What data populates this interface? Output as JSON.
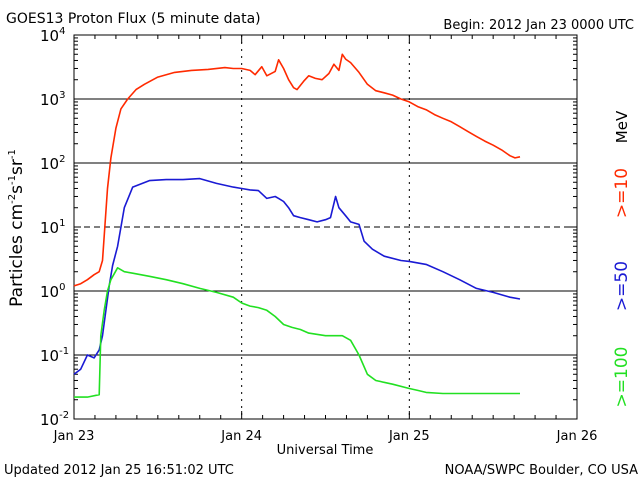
{
  "header": {
    "title": "GOES13 Proton Flux (5 minute data)",
    "begin": "Begin: 2012 Jan 23 0000 UTC"
  },
  "footer": {
    "updated": "Updated 2012 Jan 25 16:51:02 UTC",
    "credit": "NOAA/SWPC Boulder, CO USA"
  },
  "colors": {
    "ge10": "#ff2a00",
    "ge50": "#1a1ad4",
    "ge100": "#22e022",
    "grid": "#000000"
  },
  "chart_data": {
    "type": "line",
    "title": "GOES13 Proton Flux (5 minute data)",
    "xlabel": "Universal Time",
    "ylabel_parts": {
      "base": "Particles cm",
      "e1": "-2",
      "mid1": "s",
      "e2": "-1",
      "mid2": "sr",
      "e3": "-1"
    },
    "y_scale": "log",
    "ylim": [
      0.01,
      10000
    ],
    "xlim": [
      0,
      3
    ],
    "x_ticks": [
      {
        "pos": 0,
        "label": "Jan 23"
      },
      {
        "pos": 1,
        "label": "Jan 24"
      },
      {
        "pos": 2,
        "label": "Jan 25"
      },
      {
        "pos": 3,
        "label": "Jan 26"
      }
    ],
    "y_ticks": [
      {
        "value": 0.01,
        "base": "10",
        "exp": "-2"
      },
      {
        "value": 0.1,
        "base": "10",
        "exp": "-1"
      },
      {
        "value": 1,
        "base": "10",
        "exp": "0"
      },
      {
        "value": 10,
        "base": "10",
        "exp": "1"
      },
      {
        "value": 100,
        "base": "10",
        "exp": "2"
      },
      {
        "value": 1000,
        "base": "10",
        "exp": "3"
      },
      {
        "value": 10000,
        "base": "10",
        "exp": "4"
      }
    ],
    "solid_gridlines": [
      0.1,
      1,
      100,
      1000
    ],
    "dashed_gridlines": [
      10
    ],
    "unit_label": "MeV",
    "series": [
      {
        "name": ">=10",
        "color": "#ff2a00",
        "points": [
          [
            0,
            1.2
          ],
          [
            0.04,
            1.3
          ],
          [
            0.08,
            1.5
          ],
          [
            0.12,
            1.8
          ],
          [
            0.15,
            2
          ],
          [
            0.17,
            3
          ],
          [
            0.2,
            40
          ],
          [
            0.22,
            120
          ],
          [
            0.25,
            350
          ],
          [
            0.28,
            700
          ],
          [
            0.32,
            1000
          ],
          [
            0.37,
            1400
          ],
          [
            0.42,
            1700
          ],
          [
            0.5,
            2200
          ],
          [
            0.6,
            2600
          ],
          [
            0.7,
            2800
          ],
          [
            0.8,
            2900
          ],
          [
            0.9,
            3100
          ],
          [
            0.95,
            3000
          ],
          [
            1.0,
            3000
          ],
          [
            1.05,
            2800
          ],
          [
            1.08,
            2400
          ],
          [
            1.12,
            3200
          ],
          [
            1.15,
            2300
          ],
          [
            1.2,
            2700
          ],
          [
            1.22,
            4100
          ],
          [
            1.25,
            3000
          ],
          [
            1.28,
            2000
          ],
          [
            1.31,
            1500
          ],
          [
            1.33,
            1400
          ],
          [
            1.37,
            1900
          ],
          [
            1.4,
            2300
          ],
          [
            1.44,
            2100
          ],
          [
            1.48,
            2000
          ],
          [
            1.52,
            2500
          ],
          [
            1.55,
            3500
          ],
          [
            1.58,
            2800
          ],
          [
            1.6,
            5000
          ],
          [
            1.62,
            4200
          ],
          [
            1.65,
            3700
          ],
          [
            1.7,
            2600
          ],
          [
            1.75,
            1700
          ],
          [
            1.8,
            1350
          ],
          [
            1.85,
            1250
          ],
          [
            1.9,
            1150
          ],
          [
            1.95,
            1000
          ],
          [
            2.0,
            900
          ],
          [
            2.05,
            760
          ],
          [
            2.1,
            680
          ],
          [
            2.15,
            570
          ],
          [
            2.2,
            500
          ],
          [
            2.25,
            440
          ],
          [
            2.3,
            370
          ],
          [
            2.35,
            310
          ],
          [
            2.4,
            260
          ],
          [
            2.45,
            220
          ],
          [
            2.5,
            190
          ],
          [
            2.55,
            160
          ],
          [
            2.6,
            130
          ],
          [
            2.63,
            120
          ],
          [
            2.66,
            125
          ]
        ]
      },
      {
        "name": ">=50",
        "color": "#1a1ad4",
        "points": [
          [
            0,
            0.05
          ],
          [
            0.04,
            0.06
          ],
          [
            0.08,
            0.1
          ],
          [
            0.12,
            0.09
          ],
          [
            0.15,
            0.12
          ],
          [
            0.17,
            0.2
          ],
          [
            0.19,
            0.5
          ],
          [
            0.21,
            1.2
          ],
          [
            0.23,
            2.5
          ],
          [
            0.26,
            5
          ],
          [
            0.3,
            20
          ],
          [
            0.35,
            42
          ],
          [
            0.45,
            53
          ],
          [
            0.55,
            55
          ],
          [
            0.65,
            55
          ],
          [
            0.75,
            57
          ],
          [
            0.85,
            48
          ],
          [
            0.95,
            42
          ],
          [
            1.0,
            40
          ],
          [
            1.05,
            38
          ],
          [
            1.1,
            37
          ],
          [
            1.15,
            28
          ],
          [
            1.2,
            30
          ],
          [
            1.22,
            28
          ],
          [
            1.25,
            25
          ],
          [
            1.28,
            20
          ],
          [
            1.31,
            15
          ],
          [
            1.35,
            14
          ],
          [
            1.4,
            13
          ],
          [
            1.45,
            12
          ],
          [
            1.5,
            13
          ],
          [
            1.53,
            14
          ],
          [
            1.56,
            30
          ],
          [
            1.58,
            20
          ],
          [
            1.62,
            15
          ],
          [
            1.65,
            12
          ],
          [
            1.7,
            11
          ],
          [
            1.73,
            6
          ],
          [
            1.78,
            4.5
          ],
          [
            1.85,
            3.5
          ],
          [
            1.95,
            3
          ],
          [
            2.0,
            2.9
          ],
          [
            2.1,
            2.6
          ],
          [
            2.2,
            2
          ],
          [
            2.3,
            1.5
          ],
          [
            2.4,
            1.1
          ],
          [
            2.5,
            0.95
          ],
          [
            2.6,
            0.8
          ],
          [
            2.66,
            0.75
          ]
        ]
      },
      {
        "name": ">=100",
        "color": "#22e022",
        "points": [
          [
            0,
            0.022
          ],
          [
            0.08,
            0.022
          ],
          [
            0.15,
            0.024
          ],
          [
            0.16,
            0.2
          ],
          [
            0.18,
            0.5
          ],
          [
            0.2,
            1.0
          ],
          [
            0.22,
            1.5
          ],
          [
            0.26,
            2.3
          ],
          [
            0.3,
            2.0
          ],
          [
            0.35,
            1.9
          ],
          [
            0.45,
            1.7
          ],
          [
            0.55,
            1.5
          ],
          [
            0.65,
            1.3
          ],
          [
            0.75,
            1.1
          ],
          [
            0.85,
            0.95
          ],
          [
            0.95,
            0.8
          ],
          [
            1.0,
            0.65
          ],
          [
            1.05,
            0.58
          ],
          [
            1.1,
            0.55
          ],
          [
            1.15,
            0.5
          ],
          [
            1.2,
            0.4
          ],
          [
            1.25,
            0.3
          ],
          [
            1.3,
            0.27
          ],
          [
            1.35,
            0.25
          ],
          [
            1.4,
            0.22
          ],
          [
            1.5,
            0.2
          ],
          [
            1.6,
            0.2
          ],
          [
            1.65,
            0.17
          ],
          [
            1.7,
            0.1
          ],
          [
            1.75,
            0.05
          ],
          [
            1.8,
            0.04
          ],
          [
            1.9,
            0.035
          ],
          [
            2.0,
            0.03
          ],
          [
            2.05,
            0.028
          ],
          [
            2.1,
            0.026
          ],
          [
            2.2,
            0.025
          ],
          [
            2.4,
            0.025
          ],
          [
            2.6,
            0.025
          ],
          [
            2.66,
            0.025
          ]
        ]
      }
    ]
  }
}
